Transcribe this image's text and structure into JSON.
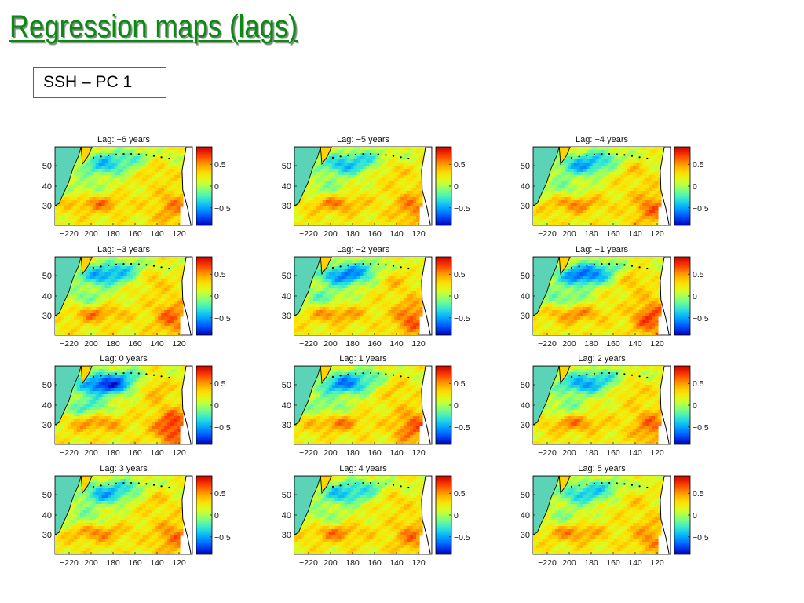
{
  "slide": {
    "title": "Regression maps (lags)",
    "subtitle": "SSH – PC 1"
  },
  "colors": {
    "title": "#0a8a14",
    "subtitle_border": "#c0392b",
    "colormap": [
      "#0000b4",
      "#0050ff",
      "#00a8ff",
      "#2fe6d8",
      "#7fff7f",
      "#d4ff2a",
      "#ffe000",
      "#ff9c00",
      "#ff3c00",
      "#c80000"
    ]
  },
  "chart_data": {
    "type": "heatmap",
    "variable": "SSH – PC 1",
    "x_ticks": [
      "−220",
      "200",
      "180",
      "160",
      "140",
      "120"
    ],
    "y_ticks": [
      "50",
      "40",
      "30"
    ],
    "colorbar": {
      "ticks": [
        "0.5",
        "0",
        "−0.5"
      ],
      "range": [
        -0.9,
        0.9
      ]
    },
    "panels": [
      {
        "title": "Lag: −6 years",
        "lag": -6,
        "amplitude": 0.55
      },
      {
        "title": "Lag: −5 years",
        "lag": -5,
        "amplitude": 0.6
      },
      {
        "title": "Lag: −4 years",
        "lag": -4,
        "amplitude": 0.65
      },
      {
        "title": "Lag: −3 years",
        "lag": -3,
        "amplitude": 0.7
      },
      {
        "title": "Lag: −2 years",
        "lag": -2,
        "amplitude": 0.78
      },
      {
        "title": "Lag: −1 years",
        "lag": -1,
        "amplitude": 0.85
      },
      {
        "title": "Lag: 0 years",
        "lag": 0,
        "amplitude": 1.0
      },
      {
        "title": "Lag: 1 years",
        "lag": 1,
        "amplitude": 0.75
      },
      {
        "title": "Lag: 2 years",
        "lag": 2,
        "amplitude": 0.68
      },
      {
        "title": "Lag: 3 years",
        "lag": 3,
        "amplitude": 0.62
      },
      {
        "title": "Lag: 4 years",
        "lag": 4,
        "amplitude": 0.58
      },
      {
        "title": "Lag: 5 years",
        "lag": 5,
        "amplitude": 0.55
      }
    ]
  }
}
